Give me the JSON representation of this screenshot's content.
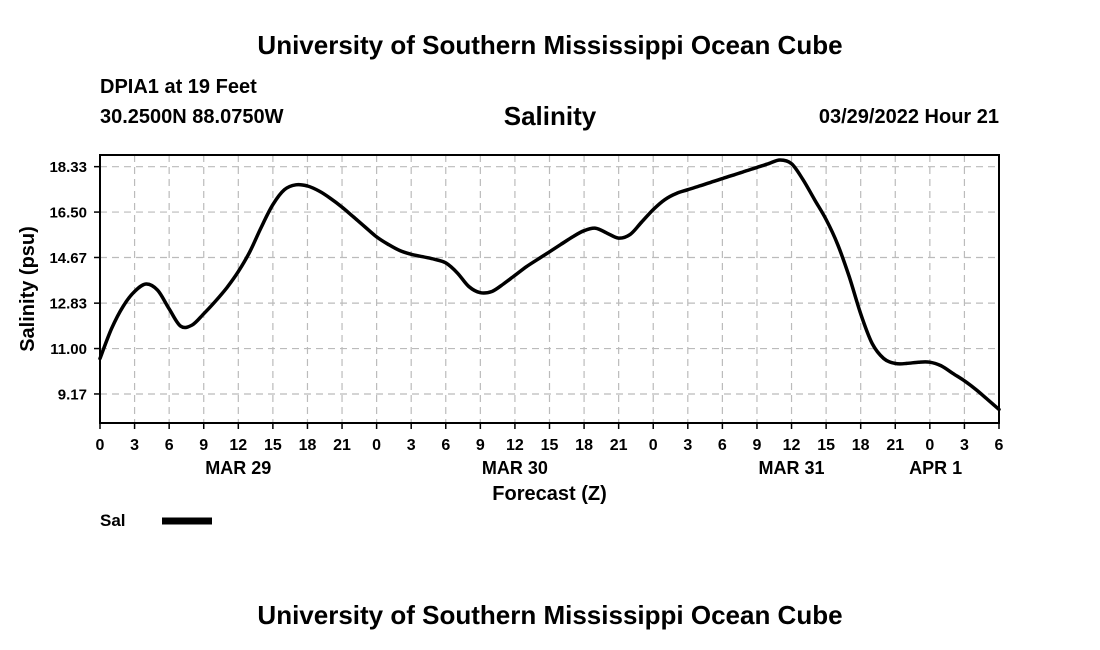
{
  "header": {
    "title": "University of Southern Mississippi Ocean Cube",
    "station": "DPIA1 at 19 Feet",
    "coordinates": "30.2500N  88.0750W",
    "variable": "Salinity",
    "timestamp": "03/29/2022 Hour 21"
  },
  "footer": {
    "title": "University of Southern Mississippi Ocean Cube"
  },
  "colors": {
    "line": "#000000",
    "grid": "#bbbbbb",
    "background": "#ffffff"
  },
  "chart_data": {
    "type": "line",
    "title": "Salinity",
    "xlabel": "Forecast (Z)",
    "ylabel": "Salinity (psu)",
    "ylim": [
      8.0,
      18.8
    ],
    "xlim": [
      0,
      78
    ],
    "x_unit": "hours from 2022-03-29 00Z",
    "yticks": [
      9.17,
      11.0,
      12.83,
      14.67,
      16.5,
      18.33
    ],
    "ytick_labels": [
      "9.17",
      "11.00",
      "12.83",
      "14.67",
      "16.50",
      "18.33"
    ],
    "xticks": [
      0,
      3,
      6,
      9,
      12,
      15,
      18,
      21,
      24,
      27,
      30,
      33,
      36,
      39,
      42,
      45,
      48,
      51,
      54,
      57,
      60,
      63,
      66,
      69,
      72,
      75,
      78
    ],
    "xtick_labels": [
      "0",
      "3",
      "6",
      "9",
      "12",
      "15",
      "18",
      "21",
      "0",
      "3",
      "6",
      "9",
      "12",
      "15",
      "18",
      "21",
      "0",
      "3",
      "6",
      "9",
      "12",
      "15",
      "18",
      "21",
      "0",
      "3",
      "6"
    ],
    "date_labels": [
      {
        "x": 12,
        "label": "MAR 29"
      },
      {
        "x": 36,
        "label": "MAR 30"
      },
      {
        "x": 60,
        "label": "MAR 31"
      },
      {
        "x": 72.5,
        "label": "APR 1"
      }
    ],
    "grid": true,
    "legend": "bottom-left",
    "series": [
      {
        "name": "Sal",
        "x": [
          0,
          1,
          2,
          3,
          4,
          5,
          6,
          7,
          8,
          9,
          10,
          11,
          12,
          13,
          14,
          15,
          16,
          17,
          18,
          19,
          20,
          21,
          22,
          23,
          24,
          25,
          26,
          27,
          28,
          29,
          30,
          31,
          32,
          33,
          34,
          35,
          36,
          37,
          38,
          39,
          40,
          41,
          42,
          43,
          44,
          45,
          46,
          47,
          48,
          49,
          50,
          51,
          52,
          53,
          54,
          55,
          56,
          57,
          58,
          59,
          60,
          61,
          62,
          63,
          64,
          65,
          66,
          67,
          68,
          69,
          70,
          71,
          72,
          73,
          74,
          75,
          76,
          77,
          78
        ],
        "values": [
          10.6,
          11.8,
          12.7,
          13.3,
          13.6,
          13.35,
          12.6,
          11.9,
          11.95,
          12.4,
          12.9,
          13.45,
          14.1,
          14.9,
          15.9,
          16.8,
          17.4,
          17.6,
          17.55,
          17.35,
          17.05,
          16.7,
          16.3,
          15.9,
          15.5,
          15.2,
          14.95,
          14.8,
          14.7,
          14.6,
          14.45,
          14.05,
          13.5,
          13.25,
          13.3,
          13.6,
          13.95,
          14.3,
          14.6,
          14.9,
          15.2,
          15.5,
          15.75,
          15.85,
          15.65,
          15.45,
          15.6,
          16.1,
          16.6,
          17.0,
          17.25,
          17.4,
          17.55,
          17.7,
          17.85,
          18.0,
          18.15,
          18.3,
          18.45,
          18.6,
          18.45,
          17.8,
          17.0,
          16.2,
          15.2,
          13.9,
          12.4,
          11.2,
          10.6,
          10.4,
          10.4,
          10.45,
          10.45,
          10.3,
          10.0,
          9.7,
          9.35,
          8.95,
          8.55
        ]
      }
    ]
  }
}
